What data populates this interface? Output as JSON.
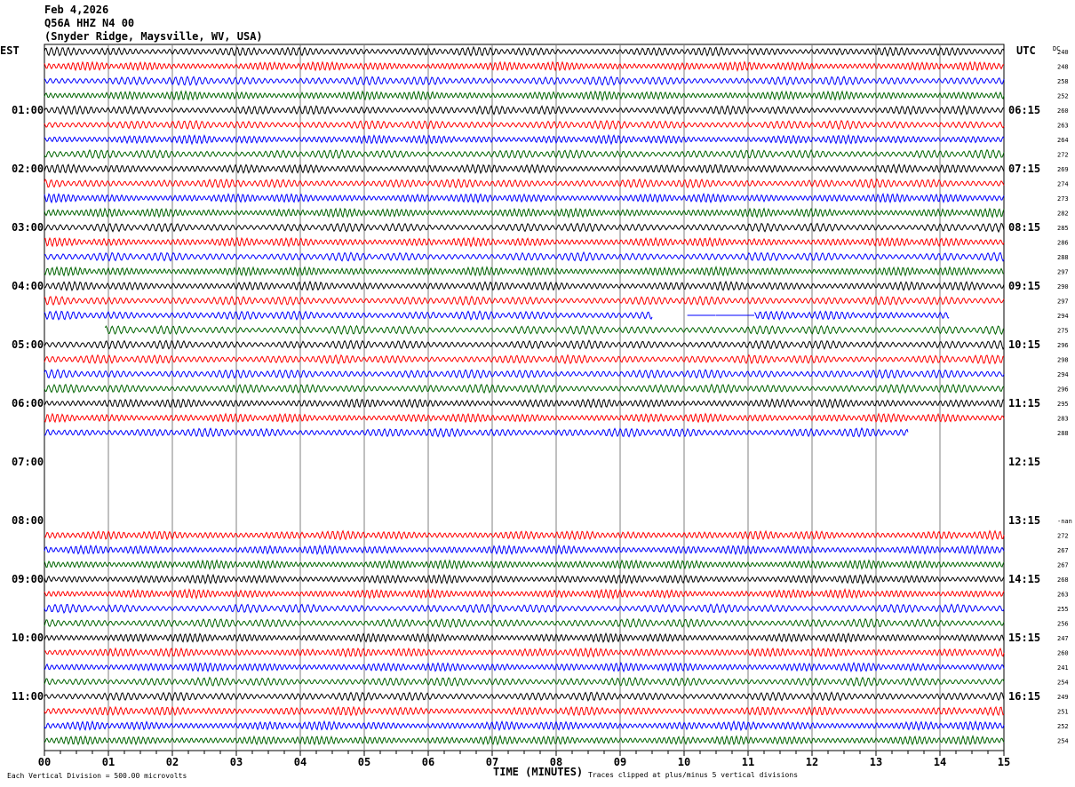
{
  "header": {
    "date": "Feb 4,2026",
    "station": "Q56A HHZ N4 00",
    "location": "(Snyder Ridge, Maysville, WV, USA)"
  },
  "left_tz": "EST",
  "right_tz": "UTC",
  "dc_label": "DC",
  "footer": {
    "scale": "Each Vertical Division =  500.00 microvolts",
    "xlabel": "TIME (MINUTES)",
    "clip_note": "Traces clipped at plus/minus 5 vertical divisions"
  },
  "chart_data": {
    "type": "line",
    "subtype": "helicorder",
    "xlabel": "TIME (MINUTES)",
    "xlim": [
      0,
      15
    ],
    "x_ticks": [
      "00",
      "01",
      "02",
      "03",
      "04",
      "05",
      "06",
      "07",
      "08",
      "09",
      "10",
      "11",
      "12",
      "13",
      "14",
      "15"
    ],
    "row_minutes": 15,
    "colors": [
      "#000000",
      "#ff0000",
      "#0000ff",
      "#006400"
    ],
    "grid": true,
    "left_labels": [
      {
        "row": 4,
        "text": "01:00"
      },
      {
        "row": 8,
        "text": "02:00"
      },
      {
        "row": 12,
        "text": "03:00"
      },
      {
        "row": 16,
        "text": "04:00"
      },
      {
        "row": 20,
        "text": "05:00"
      },
      {
        "row": 24,
        "text": "06:00"
      },
      {
        "row": 28,
        "text": "07:00"
      },
      {
        "row": 32,
        "text": "08:00"
      },
      {
        "row": 36,
        "text": "09:00"
      },
      {
        "row": 40,
        "text": "10:00"
      },
      {
        "row": 44,
        "text": "11:00"
      }
    ],
    "right_labels": [
      {
        "row": 4,
        "text": "06:15"
      },
      {
        "row": 8,
        "text": "07:15"
      },
      {
        "row": 12,
        "text": "08:15"
      },
      {
        "row": 16,
        "text": "09:15"
      },
      {
        "row": 20,
        "text": "10:15"
      },
      {
        "row": 24,
        "text": "11:15"
      },
      {
        "row": 28,
        "text": "12:15"
      },
      {
        "row": 32,
        "text": "13:15"
      },
      {
        "row": 36,
        "text": "14:15"
      },
      {
        "row": 40,
        "text": "15:15"
      },
      {
        "row": 44,
        "text": "16:15"
      }
    ],
    "rows": [
      {
        "dc": "240"
      },
      {
        "dc": "248"
      },
      {
        "dc": "258"
      },
      {
        "dc": "252"
      },
      {
        "dc": "260"
      },
      {
        "dc": "263"
      },
      {
        "dc": "264"
      },
      {
        "dc": "272"
      },
      {
        "dc": "269"
      },
      {
        "dc": "274"
      },
      {
        "dc": "273"
      },
      {
        "dc": "282"
      },
      {
        "dc": "285"
      },
      {
        "dc": "286"
      },
      {
        "dc": "288"
      },
      {
        "dc": "297"
      },
      {
        "dc": "290"
      },
      {
        "dc": "297"
      },
      {
        "dc": "294",
        "segments": [
          [
            0,
            9.5
          ],
          [
            10.05,
            10.5,
            "flat"
          ],
          [
            10.5,
            11.1,
            "flat"
          ],
          [
            11.1,
            14.15
          ]
        ]
      },
      {
        "dc": "275",
        "segments": [
          [
            0.95,
            15
          ]
        ]
      },
      {
        "dc": "296"
      },
      {
        "dc": "298"
      },
      {
        "dc": "294"
      },
      {
        "dc": "296"
      },
      {
        "dc": "295"
      },
      {
        "dc": "283"
      },
      {
        "dc": "288",
        "segments": [
          [
            0,
            13.5
          ]
        ]
      },
      {
        "dc": "",
        "segments": []
      },
      {
        "dc": "",
        "segments": []
      },
      {
        "dc": "",
        "segments": []
      },
      {
        "dc": "",
        "segments": []
      },
      {
        "dc": "",
        "segments": []
      },
      {
        "dc": "-nan",
        "segments": []
      },
      {
        "dc": "272"
      },
      {
        "dc": "267"
      },
      {
        "dc": "267"
      },
      {
        "dc": "268"
      },
      {
        "dc": "263"
      },
      {
        "dc": "255"
      },
      {
        "dc": "256"
      },
      {
        "dc": "247"
      },
      {
        "dc": "260"
      },
      {
        "dc": "241"
      },
      {
        "dc": "254"
      },
      {
        "dc": "249"
      },
      {
        "dc": "251"
      },
      {
        "dc": "252"
      },
      {
        "dc": "254"
      }
    ]
  }
}
